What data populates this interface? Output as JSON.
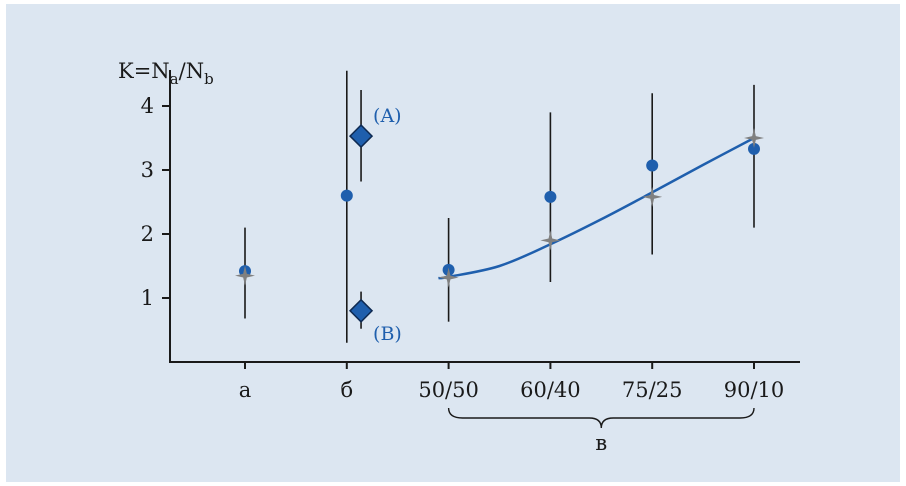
{
  "chart_data": {
    "type": "scatter",
    "title": "",
    "ylabel_parts": {
      "main": "K=N",
      "sub1": "a",
      "mid": "/N",
      "sub2": "b"
    },
    "xlabel": "",
    "ylim": [
      0,
      4.6
    ],
    "y_ticks": [
      "1",
      "2",
      "3",
      "4"
    ],
    "categories": [
      "a",
      "б",
      "50/50",
      "60/40",
      "75/25",
      "90/10"
    ],
    "group_brace_label": "в",
    "grid": false,
    "series": [
      {
        "marker": "circle",
        "color": "#1f5fad",
        "points": [
          {
            "category": "a",
            "y": 1.42,
            "err_low": 0.68,
            "err_high": 2.1
          },
          {
            "category": "б",
            "y": 2.6,
            "err_low": 0.3,
            "err_high": 4.55
          },
          {
            "category": "50/50",
            "y": 1.44,
            "err_low": 0.63,
            "err_high": 2.25
          },
          {
            "category": "60/40",
            "y": 2.58,
            "err_low": 1.25,
            "err_high": 3.9
          },
          {
            "category": "75/25",
            "y": 3.07,
            "err_low": 1.68,
            "err_high": 4.2
          },
          {
            "category": "90/10",
            "y": 3.33,
            "err_low": 2.1,
            "err_high": 4.33
          }
        ]
      },
      {
        "marker": "star",
        "color": "#808080",
        "points": [
          {
            "category": "a",
            "y": 1.35
          },
          {
            "category": "50/50",
            "y": 1.32
          },
          {
            "category": "60/40",
            "y": 1.9
          },
          {
            "category": "75/25",
            "y": 2.58
          },
          {
            "category": "90/10",
            "y": 3.5
          }
        ]
      },
      {
        "marker": "diamond",
        "color": "#1f5fad",
        "points": [
          {
            "category": "б",
            "offset": 0.14,
            "y": 3.53,
            "err_low": 2.82,
            "err_high": 4.25,
            "label": "(A)"
          },
          {
            "category": "б",
            "offset": 0.14,
            "y": 0.8,
            "err_low": 0.52,
            "err_high": 1.1,
            "label": "(B)"
          }
        ]
      }
    ],
    "fit_curve": {
      "color": "#1f5fad",
      "points": [
        {
          "category_pos": 1.9,
          "y": 1.31
        },
        {
          "category_pos": 2.0,
          "y": 1.33
        },
        {
          "category_pos": 2.5,
          "y": 1.5
        },
        {
          "category_pos": 3.0,
          "y": 1.84
        },
        {
          "category_pos": 3.5,
          "y": 2.23
        },
        {
          "category_pos": 4.0,
          "y": 2.65
        },
        {
          "category_pos": 4.5,
          "y": 3.08
        },
        {
          "category_pos": 5.0,
          "y": 3.5
        }
      ]
    }
  }
}
